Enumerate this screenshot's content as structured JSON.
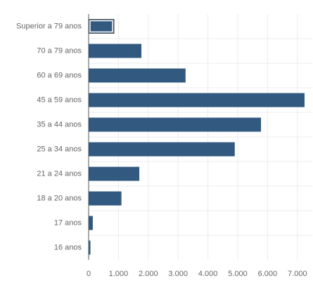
{
  "chart_data": {
    "type": "bar",
    "orientation": "horizontal",
    "categories": [
      "Superior a 79 anos",
      "70 a 79 anos",
      "60 a 69 anos",
      "45 a 59 anos",
      "35 a 44 anos",
      "25 a 34 anos",
      "21 a 24 anos",
      "18 a 20 anos",
      "17 anos",
      "16 anos"
    ],
    "values": [
      850,
      1770,
      3250,
      7240,
      5780,
      4900,
      1700,
      1100,
      140,
      60
    ],
    "color": "#325a80",
    "xlim": [
      0,
      7500
    ],
    "xticks": [
      0,
      {
        "value": 1000,
        "label": "1.000"
      },
      {
        "value": 2000,
        "label": "2.000"
      },
      {
        "value": 3000,
        "label": "3.000"
      },
      {
        "value": 4000,
        "label": "4.000"
      },
      {
        "value": 5000,
        "label": "5.000"
      },
      {
        "value": 6000,
        "label": "6.000"
      },
      {
        "value": 7000,
        "label": "7.000"
      }
    ],
    "grid": true
  }
}
